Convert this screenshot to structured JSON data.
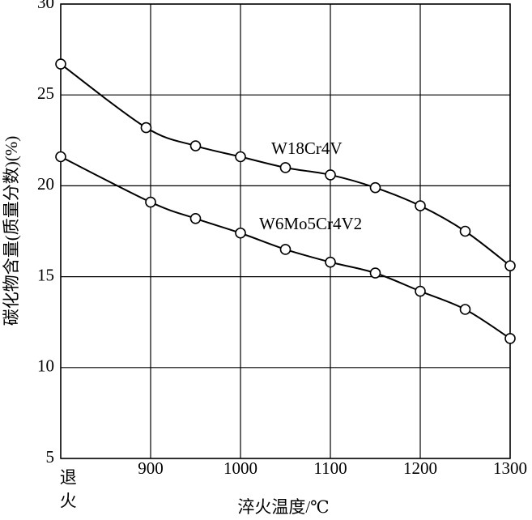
{
  "chart_data": {
    "type": "line",
    "x_label": "淬火温度/℃",
    "y_label": "碳化物含量(质量分数)(%)",
    "xlim": [
      800,
      1300
    ],
    "xticks": [
      {
        "value": 800,
        "label": "退火"
      },
      900,
      1000,
      1100,
      1200,
      1300
    ],
    "ylim": [
      5,
      30
    ],
    "yticks": [
      5,
      10,
      15,
      20,
      25,
      30
    ],
    "grid": true,
    "series": [
      {
        "name": "W18Cr4V",
        "color": "#000000",
        "x": [
          800,
          895,
          950,
          1000,
          1050,
          1100,
          1150,
          1200,
          1250,
          1300
        ],
        "values": [
          26.7,
          23.2,
          22.2,
          21.6,
          21.0,
          20.6,
          19.9,
          18.9,
          17.5,
          15.6
        ]
      },
      {
        "name": "W6Mo5Cr4V2",
        "color": "#000000",
        "x": [
          800,
          900,
          950,
          1000,
          1050,
          1100,
          1150,
          1200,
          1250,
          1300
        ],
        "values": [
          21.6,
          19.1,
          18.2,
          17.4,
          16.5,
          15.8,
          15.2,
          14.2,
          13.2,
          11.6
        ]
      }
    ]
  }
}
